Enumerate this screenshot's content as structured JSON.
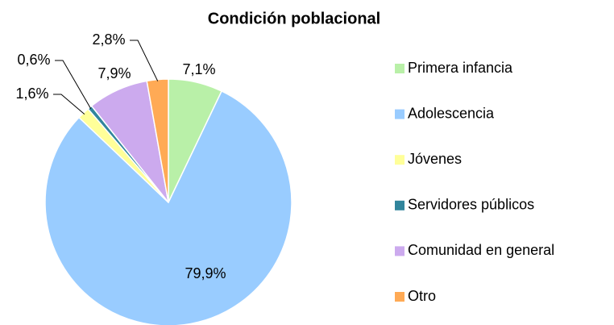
{
  "chart_data": {
    "type": "pie",
    "title": "Condición poblacional",
    "categories": [
      "Primera infancia",
      "Adolescencia",
      "Jóvenes",
      "Servidores públicos",
      "Comunidad en general",
      "Otro"
    ],
    "values": [
      7.1,
      79.9,
      1.6,
      0.6,
      7.9,
      2.8
    ],
    "value_labels": [
      "7,1%",
      "79,9%",
      "1,6%",
      "0,6%",
      "7,9%",
      "2,8%"
    ],
    "colors": [
      "#b9f0a8",
      "#99ccff",
      "#ffff99",
      "#31859c",
      "#ccaaee",
      "#ffaa55"
    ],
    "legend": "right"
  }
}
